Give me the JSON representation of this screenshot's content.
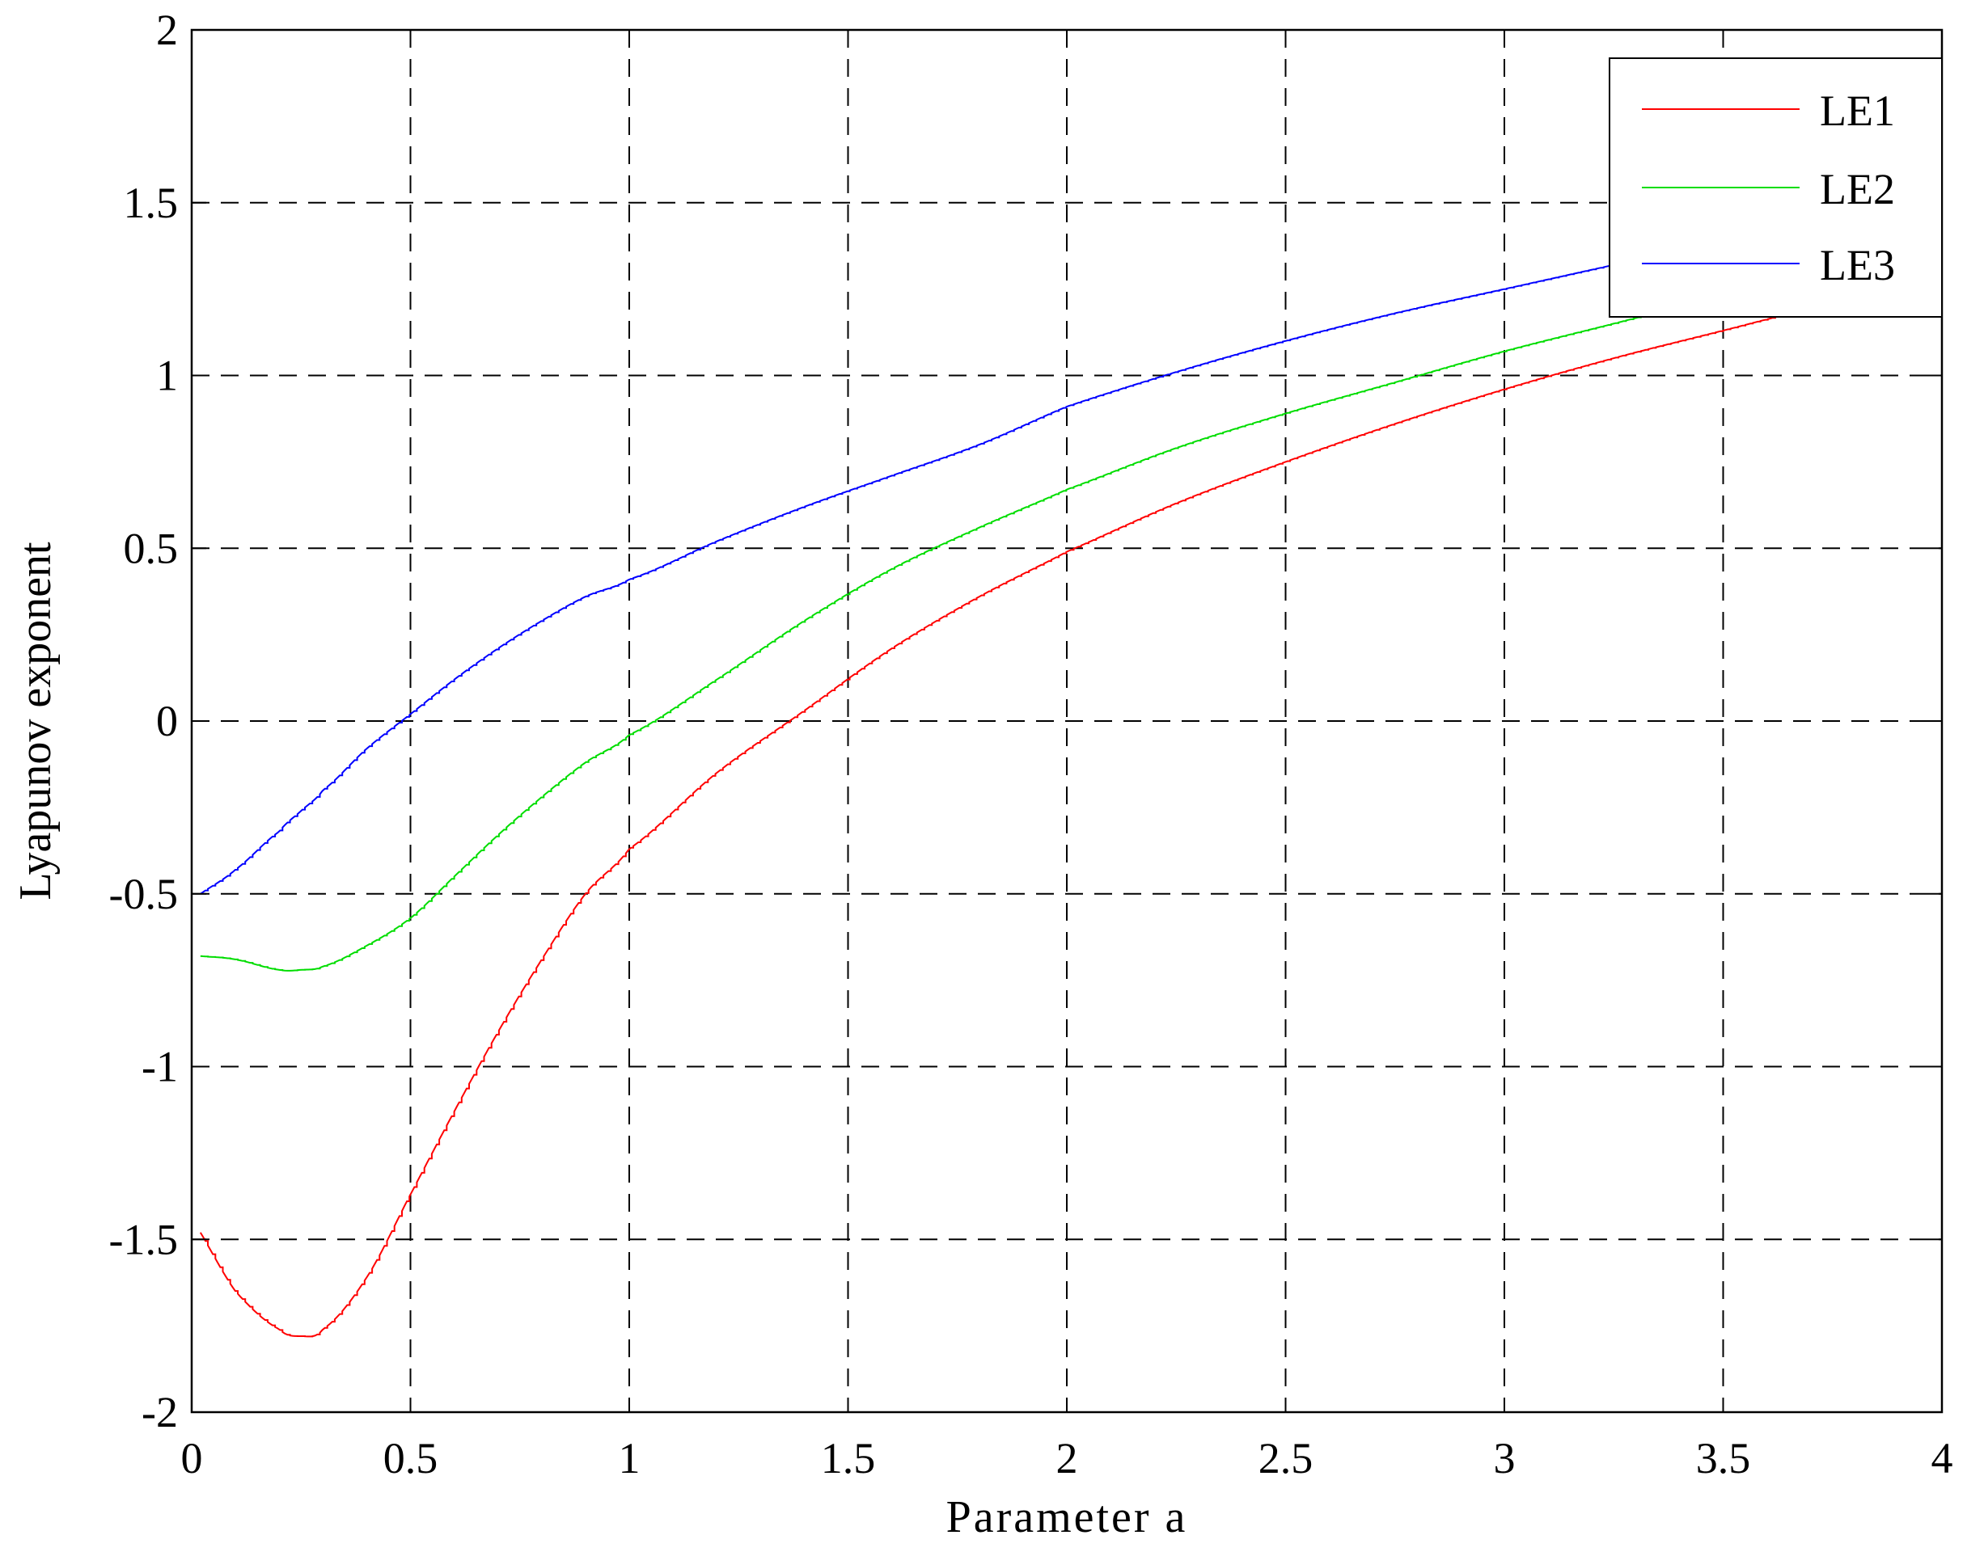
{
  "chart_data": {
    "type": "line",
    "xlabel": "Parameter a",
    "ylabel": "Lyapunov exponent",
    "xlim": [
      0,
      4
    ],
    "ylim": [
      -2,
      2
    ],
    "xticks": [
      0,
      0.5,
      1,
      1.5,
      2,
      2.5,
      3,
      3.5,
      4
    ],
    "yticks": [
      -2,
      -1.5,
      -1,
      -0.5,
      0,
      0.5,
      1,
      1.5,
      2
    ],
    "xtick_labels": [
      "0",
      "0.5",
      "1",
      "1.5",
      "2",
      "2.5",
      "3",
      "3.5",
      "4"
    ],
    "ytick_labels": [
      "-2",
      "-1.5",
      "-1",
      "-0.5",
      "0",
      "0.5",
      "1",
      "1.5",
      "2"
    ],
    "grid": true,
    "legend_position": "top-right",
    "x": [
      0.02,
      0.1,
      0.2,
      0.25,
      0.3,
      0.4,
      0.5,
      0.6,
      0.7,
      0.8,
      0.9,
      1.0,
      1.2,
      1.4,
      1.6,
      1.8,
      2.0,
      2.25,
      2.5,
      2.75,
      3.0,
      3.25,
      3.5,
      3.75,
      4.0
    ],
    "series": [
      {
        "name": "LE1",
        "color": "#ff0000",
        "values": [
          -1.48,
          -1.65,
          -1.76,
          -1.78,
          -1.76,
          -1.61,
          -1.37,
          -1.13,
          -0.9,
          -0.69,
          -0.5,
          -0.37,
          -0.15,
          0.03,
          0.21,
          0.36,
          0.49,
          0.63,
          0.75,
          0.86,
          0.96,
          1.05,
          1.13,
          1.21,
          1.28
        ]
      },
      {
        "name": "LE2",
        "color": "#00dd00",
        "values": [
          -0.68,
          -0.69,
          -0.72,
          -0.72,
          -0.71,
          -0.65,
          -0.57,
          -0.45,
          -0.33,
          -0.22,
          -0.12,
          -0.04,
          0.12,
          0.29,
          0.44,
          0.56,
          0.67,
          0.79,
          0.89,
          0.98,
          1.07,
          1.15,
          1.23,
          1.3,
          1.36
        ]
      },
      {
        "name": "LE3",
        "color": "#0000ff",
        "values": [
          -0.5,
          -0.43,
          -0.32,
          -0.26,
          -0.2,
          -0.08,
          0.02,
          0.12,
          0.21,
          0.29,
          0.36,
          0.41,
          0.52,
          0.62,
          0.71,
          0.8,
          0.91,
          1.01,
          1.1,
          1.18,
          1.25,
          1.32,
          1.39,
          1.45,
          1.5
        ]
      }
    ]
  }
}
